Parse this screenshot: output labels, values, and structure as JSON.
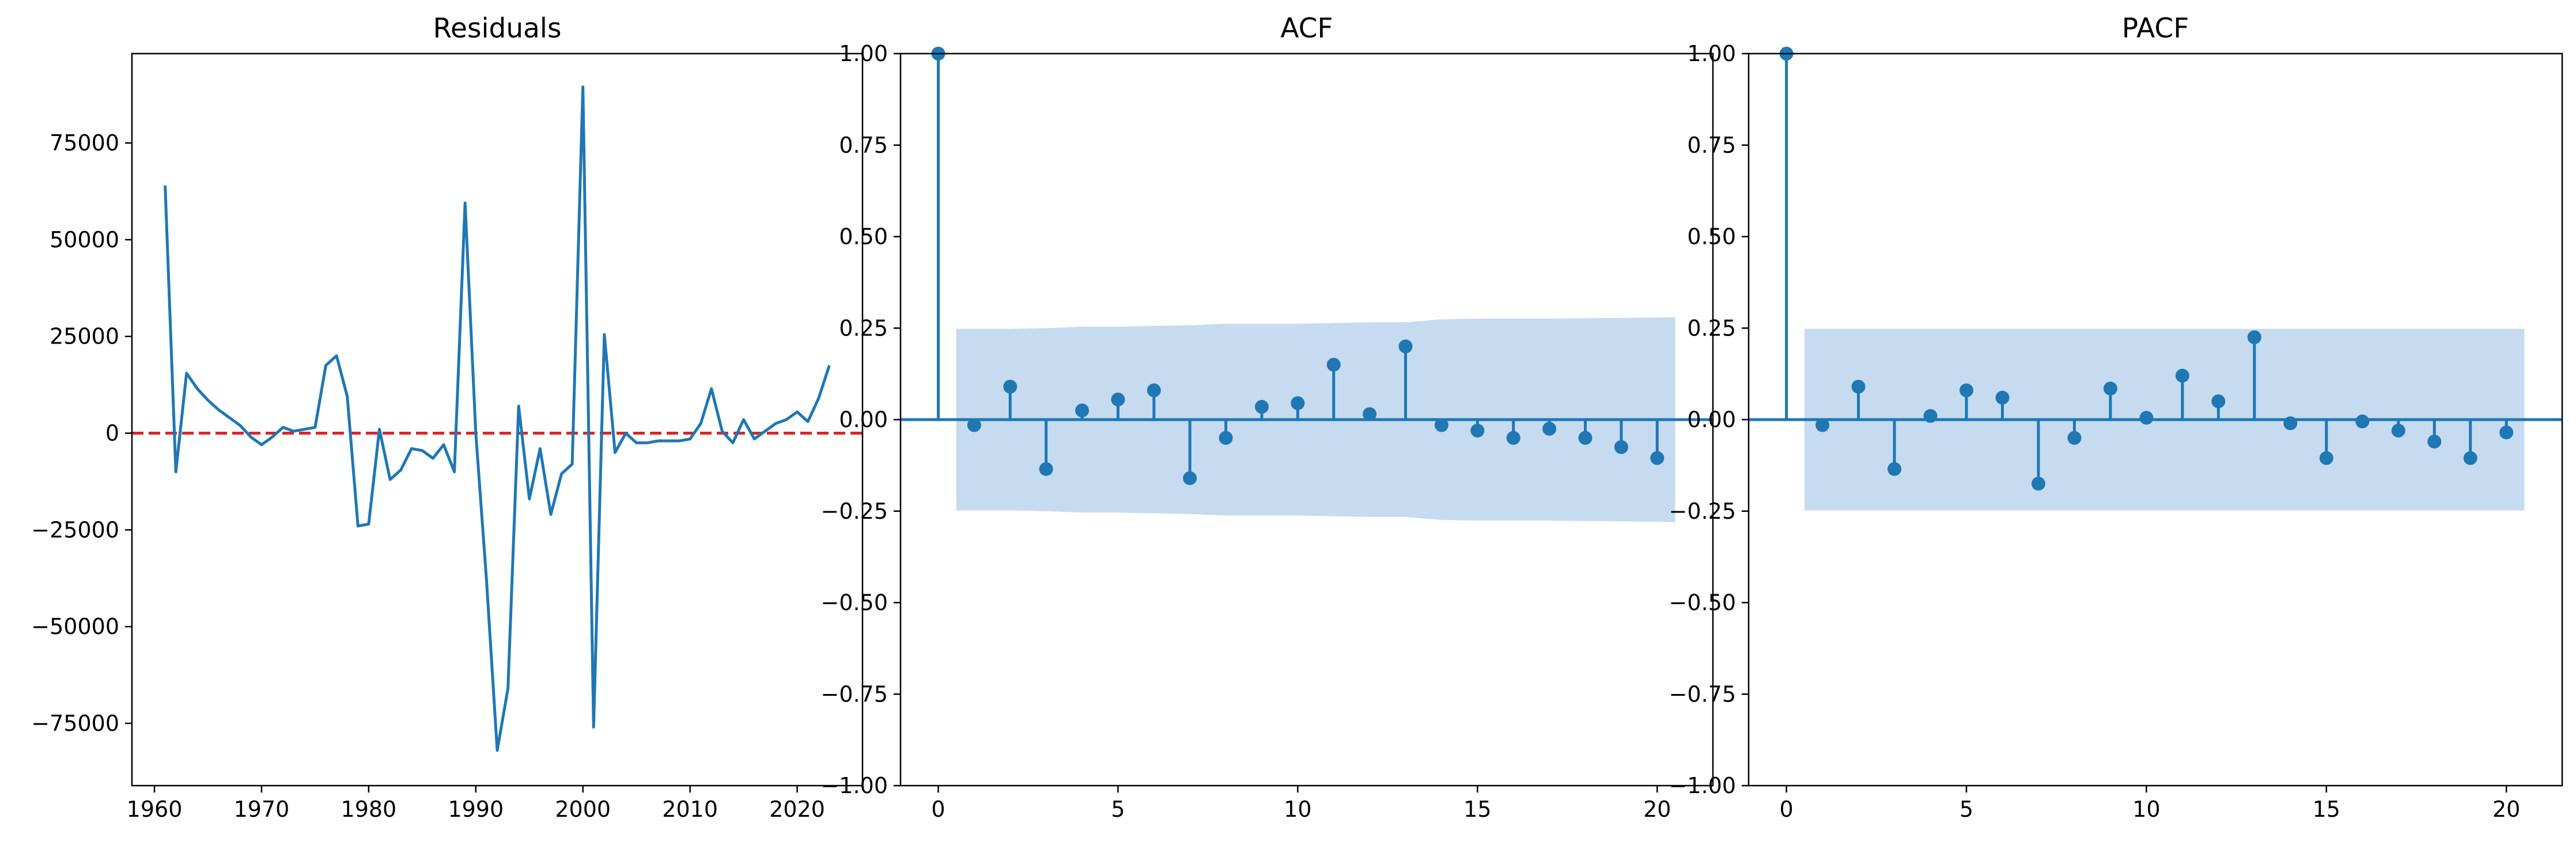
{
  "colors": {
    "line": "#1f77b4",
    "zero_line": "#d62728",
    "confidence_band": "#c6dbef",
    "axis": "#000000"
  },
  "chart_data": [
    {
      "type": "line",
      "title": "Residuals",
      "xlabel": "",
      "ylabel": "",
      "xlim": [
        1957.9,
        2026.1
      ],
      "ylim": [
        -91100,
        98100
      ],
      "xticks": [
        1960,
        1970,
        1980,
        1990,
        2000,
        2010,
        2020
      ],
      "yticks": [
        -75000,
        -50000,
        -25000,
        0,
        25000,
        50000,
        75000
      ],
      "zero_reference_line": {
        "y": 0,
        "style": "dashed",
        "color": "#d62728"
      },
      "grid": false,
      "series": [
        {
          "x": [
            1961,
            1962,
            1963,
            1964,
            1965,
            1966,
            1967,
            1968,
            1969,
            1970,
            1971,
            1972,
            1973,
            1974,
            1975,
            1976,
            1977,
            1978,
            1979,
            1980,
            1981,
            1982,
            1983,
            1984,
            1985,
            1986,
            1987,
            1988,
            1989,
            1990,
            1991,
            1992,
            1993,
            1994,
            1995,
            1996,
            1997,
            1998,
            1999,
            2000,
            2001,
            2002,
            2003,
            2004,
            2005,
            2006,
            2007,
            2008,
            2009,
            2010,
            2011,
            2012,
            2013,
            2014,
            2015,
            2016,
            2017,
            2018,
            2019,
            2020,
            2021,
            2022,
            2023
          ],
          "y": [
            64000,
            -10000,
            15500,
            11500,
            8500,
            6000,
            4000,
            2000,
            -1000,
            -3000,
            -1000,
            1500,
            500,
            1000,
            1500,
            17500,
            20000,
            9500,
            -24000,
            -23500,
            1000,
            -12000,
            -9500,
            -4000,
            -4500,
            -6500,
            -3000,
            -10000,
            59500,
            0,
            -38000,
            -82000,
            -66000,
            7000,
            -17000,
            -4000,
            -21000,
            -10500,
            -8000,
            89500,
            -76000,
            25500,
            -5000,
            0,
            -2500,
            -2500,
            -2000,
            -2000,
            -2000,
            -1500,
            2500,
            11500,
            500,
            -2500,
            3500,
            -1500,
            500,
            2500,
            3500,
            5500,
            3000,
            9000,
            17500
          ]
        }
      ]
    },
    {
      "type": "stem",
      "title": "ACF",
      "xlabel": "",
      "ylabel": "",
      "xlim": [
        -1.05,
        21.55
      ],
      "ylim": [
        -1.0,
        1.0
      ],
      "xticks": [
        0,
        5,
        10,
        15,
        20
      ],
      "yticks": [
        -1.0,
        -0.75,
        -0.5,
        -0.25,
        0.0,
        0.25,
        0.5,
        0.75,
        1.0
      ],
      "grid": false,
      "lags": [
        0,
        1,
        2,
        3,
        4,
        5,
        6,
        7,
        8,
        9,
        10,
        11,
        12,
        13,
        14,
        15,
        16,
        17,
        18,
        19,
        20
      ],
      "values": [
        1.0,
        -0.015,
        0.09,
        -0.135,
        0.025,
        0.055,
        0.08,
        -0.16,
        -0.05,
        0.035,
        0.045,
        0.15,
        0.015,
        0.2,
        -0.015,
        -0.03,
        -0.05,
        -0.025,
        -0.05,
        -0.075,
        -0.105
      ],
      "confidence_band": {
        "lags": [
          0.5,
          1,
          2,
          3,
          4,
          5,
          6,
          7,
          8,
          9,
          10,
          11,
          12,
          13,
          14,
          15,
          16,
          17,
          18,
          19,
          20,
          20.5
        ],
        "upper": [
          0.248,
          0.248,
          0.248,
          0.25,
          0.254,
          0.254,
          0.256,
          0.258,
          0.262,
          0.262,
          0.262,
          0.264,
          0.266,
          0.266,
          0.274,
          0.276,
          0.276,
          0.276,
          0.277,
          0.278,
          0.279,
          0.28
        ]
      }
    },
    {
      "type": "stem",
      "title": "PACF",
      "xlabel": "",
      "ylabel": "",
      "xlim": [
        -1.05,
        21.55
      ],
      "ylim": [
        -1.0,
        1.0
      ],
      "xticks": [
        0,
        5,
        10,
        15,
        20
      ],
      "yticks": [
        -1.0,
        -0.75,
        -0.5,
        -0.25,
        0.0,
        0.25,
        0.5,
        0.75,
        1.0
      ],
      "grid": false,
      "lags": [
        0,
        1,
        2,
        3,
        4,
        5,
        6,
        7,
        8,
        9,
        10,
        11,
        12,
        13,
        14,
        15,
        16,
        17,
        18,
        19,
        20
      ],
      "values": [
        1.0,
        -0.015,
        0.09,
        -0.135,
        0.01,
        0.08,
        0.06,
        -0.175,
        -0.05,
        0.085,
        0.005,
        0.12,
        0.05,
        0.225,
        -0.01,
        -0.105,
        -0.005,
        -0.03,
        -0.06,
        -0.105,
        -0.035
      ],
      "confidence_band": {
        "lags": [
          0.5,
          20.5
        ],
        "upper": [
          0.248,
          0.248
        ]
      }
    }
  ]
}
